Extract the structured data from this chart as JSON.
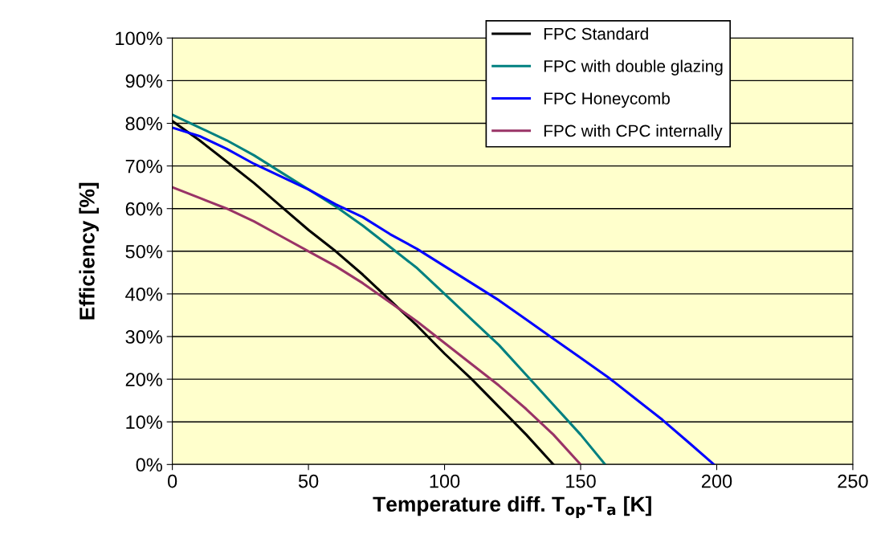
{
  "chart_data": {
    "type": "line",
    "xlabel": "Temperature diff. T$_{op}$-T$_{a}$ [K]",
    "ylabel": "Efficiency [%]",
    "xlim": [
      0,
      250
    ],
    "xticks": [
      0,
      50,
      100,
      150,
      200,
      250
    ],
    "ylim": [
      0,
      100
    ],
    "yticks": [
      {
        "value": 0,
        "label": "0%"
      },
      {
        "value": 10,
        "label": "10%"
      },
      {
        "value": 20,
        "label": "20%"
      },
      {
        "value": 30,
        "label": "30%"
      },
      {
        "value": 40,
        "label": "40%"
      },
      {
        "value": 50,
        "label": "50%"
      },
      {
        "value": 60,
        "label": "60%"
      },
      {
        "value": 70,
        "label": "70%"
      },
      {
        "value": 80,
        "label": "80%"
      },
      {
        "value": 90,
        "label": "90%"
      },
      {
        "value": 100,
        "label": "100%"
      }
    ],
    "grid": "y",
    "legend": "top right",
    "marker": "none",
    "line_style": "solid",
    "series": [
      {
        "name": "FPC Standard",
        "color": "#000000",
        "x": [
          0,
          10,
          20,
          30,
          40,
          50,
          60,
          70,
          80,
          90,
          100,
          110,
          120,
          130,
          140
        ],
        "values": [
          80.5,
          76,
          71,
          66,
          60.5,
          55,
          50,
          44.5,
          38.5,
          32.5,
          26,
          20,
          13.5,
          7,
          0
        ]
      },
      {
        "name": "FPC with double glazing",
        "color": "#008080",
        "x": [
          0,
          10,
          20,
          30,
          40,
          50,
          60,
          70,
          80,
          90,
          100,
          110,
          120,
          130,
          140,
          150,
          159
        ],
        "values": [
          82,
          79,
          76,
          72.5,
          68.5,
          64.5,
          60.5,
          56,
          51,
          46,
          40,
          34,
          28,
          21,
          14,
          7,
          0
        ]
      },
      {
        "name": "FPC Honeycomb",
        "color": "#0000ff",
        "x": [
          0,
          10,
          20,
          30,
          40,
          50,
          60,
          70,
          80,
          90,
          100,
          110,
          120,
          130,
          140,
          150,
          160,
          170,
          180,
          190,
          199
        ],
        "values": [
          79,
          77,
          74,
          70.5,
          67.5,
          64.5,
          61,
          58,
          54,
          50.5,
          46.5,
          42.5,
          38.5,
          34,
          29.5,
          25,
          20.5,
          15.5,
          10.5,
          5,
          0
        ]
      },
      {
        "name": "FPC with CPC internally",
        "color": "#993366",
        "x": [
          0,
          10,
          20,
          30,
          40,
          50,
          60,
          70,
          80,
          90,
          100,
          110,
          120,
          130,
          140,
          150
        ],
        "values": [
          65,
          62.5,
          60,
          57,
          53.5,
          50,
          46.5,
          42.5,
          38,
          33.5,
          28.5,
          23.5,
          18.5,
          13,
          7,
          0
        ]
      }
    ]
  }
}
